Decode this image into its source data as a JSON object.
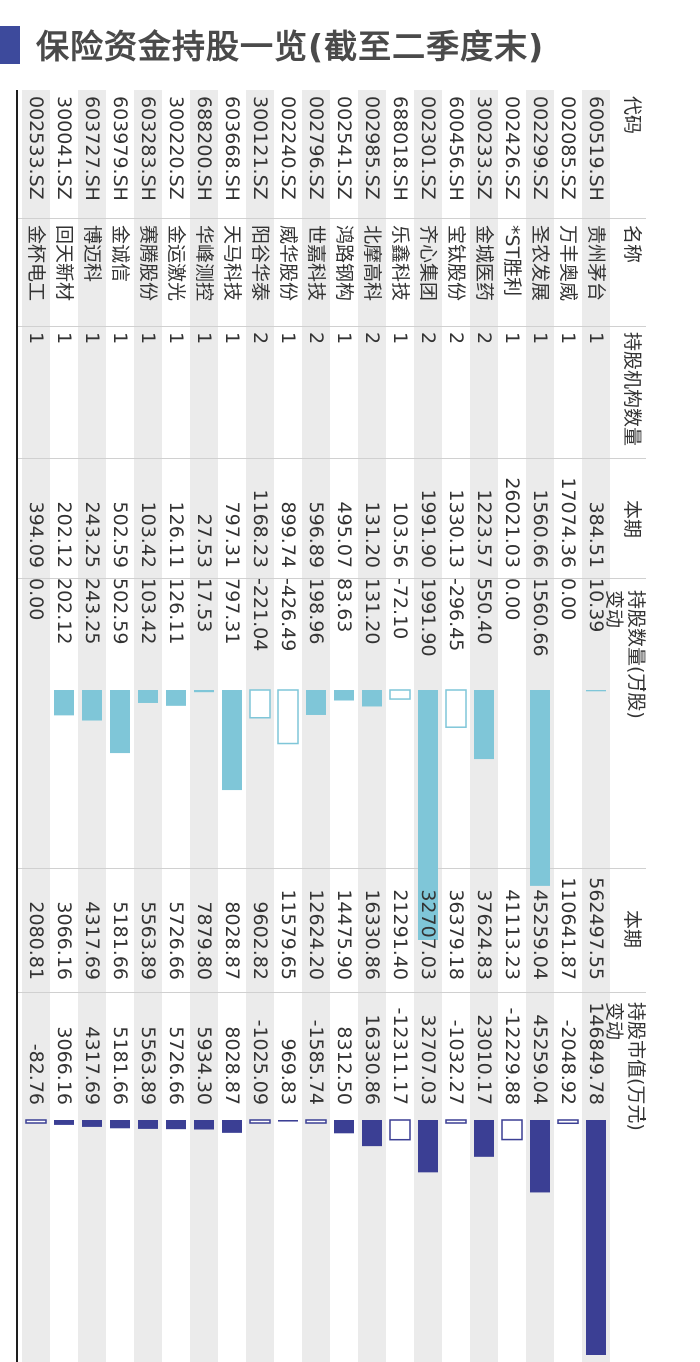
{
  "title": "保险资金持股一览(截至二季度末)",
  "header": {
    "code": "代码",
    "name": "名称",
    "count": "持股机构数量",
    "shares_group": "持股数量(万股)",
    "value_group": "持股市值(万元)",
    "current": "本期",
    "change": "变动"
  },
  "colors": {
    "accent": "#3d4a9c",
    "shares_bar": "#7fc6d8",
    "value_bar": "#3b3f94",
    "band": "#ebebeb",
    "text": "#333333"
  },
  "rows": [
    {
      "code": "600519.SH",
      "name": "贵州茅台",
      "count": "1",
      "shares": "384.51",
      "shares_chg": "10.39",
      "value": "562497.55",
      "value_chg": "146849.78"
    },
    {
      "code": "002085.SZ",
      "name": "万丰奥威",
      "count": "1",
      "shares": "17074.36",
      "shares_chg": "0.00",
      "value": "110641.87",
      "value_chg": "-2048.92"
    },
    {
      "code": "002299.SZ",
      "name": "圣农发展",
      "count": "1",
      "shares": "1560.66",
      "shares_chg": "1560.66",
      "value": "45259.04",
      "value_chg": "45259.04"
    },
    {
      "code": "002426.SZ",
      "name": "*ST胜利",
      "count": "1",
      "shares": "26021.03",
      "shares_chg": "0.00",
      "value": "41113.23",
      "value_chg": "-12229.88"
    },
    {
      "code": "300233.SZ",
      "name": "金城医药",
      "count": "2",
      "shares": "1223.57",
      "shares_chg": "550.40",
      "value": "37624.83",
      "value_chg": "23010.17"
    },
    {
      "code": "600456.SH",
      "name": "宝钛股份",
      "count": "2",
      "shares": "1330.13",
      "shares_chg": "-296.45",
      "value": "36379.18",
      "value_chg": "-1032.27"
    },
    {
      "code": "002301.SZ",
      "name": "齐心集团",
      "count": "2",
      "shares": "1991.90",
      "shares_chg": "1991.90",
      "value": "32707.03",
      "value_chg": "32707.03"
    },
    {
      "code": "688018.SH",
      "name": "乐鑫科技",
      "count": "1",
      "shares": "103.56",
      "shares_chg": "-72.10",
      "value": "21291.40",
      "value_chg": "-12311.17"
    },
    {
      "code": "002985.SZ",
      "name": "北摩高科",
      "count": "2",
      "shares": "131.20",
      "shares_chg": "131.20",
      "value": "16330.86",
      "value_chg": "16330.86"
    },
    {
      "code": "002541.SZ",
      "name": "鸿路钢构",
      "count": "1",
      "shares": "495.07",
      "shares_chg": "83.63",
      "value": "14475.90",
      "value_chg": "8312.50"
    },
    {
      "code": "002796.SZ",
      "name": "世嘉科技",
      "count": "2",
      "shares": "596.89",
      "shares_chg": "198.96",
      "value": "12624.20",
      "value_chg": "-1585.74"
    },
    {
      "code": "002240.SZ",
      "name": "威华股份",
      "count": "1",
      "shares": "899.74",
      "shares_chg": "-426.49",
      "value": "11579.65",
      "value_chg": "969.83"
    },
    {
      "code": "300121.SZ",
      "name": "阳谷华泰",
      "count": "2",
      "shares": "1168.23",
      "shares_chg": "-221.04",
      "value": "9602.82",
      "value_chg": "-1025.09"
    },
    {
      "code": "603668.SH",
      "name": "天马科技",
      "count": "1",
      "shares": "797.31",
      "shares_chg": "797.31",
      "value": "8028.87",
      "value_chg": "8028.87"
    },
    {
      "code": "688200.SH",
      "name": "华峰测控",
      "count": "1",
      "shares": "27.53",
      "shares_chg": "17.53",
      "value": "7879.80",
      "value_chg": "5934.30"
    },
    {
      "code": "300220.SZ",
      "name": "金运激光",
      "count": "1",
      "shares": "126.11",
      "shares_chg": "126.11",
      "value": "5726.66",
      "value_chg": "5726.66"
    },
    {
      "code": "603283.SH",
      "name": "赛腾股份",
      "count": "1",
      "shares": "103.42",
      "shares_chg": "103.42",
      "value": "5563.89",
      "value_chg": "5563.89"
    },
    {
      "code": "603979.SH",
      "name": "金诚信",
      "count": "1",
      "shares": "502.59",
      "shares_chg": "502.59",
      "value": "5181.66",
      "value_chg": "5181.66"
    },
    {
      "code": "603727.SH",
      "name": "博迈科",
      "count": "1",
      "shares": "243.25",
      "shares_chg": "243.25",
      "value": "4317.69",
      "value_chg": "4317.69"
    },
    {
      "code": "300041.SZ",
      "name": "回天新材",
      "count": "1",
      "shares": "202.12",
      "shares_chg": "202.12",
      "value": "3066.16",
      "value_chg": "3066.16"
    },
    {
      "code": "002533.SZ",
      "name": "金杯电工",
      "count": "1",
      "shares": "394.09",
      "shares_chg": "0.00",
      "value": "2080.81",
      "value_chg": "-82.76"
    }
  ],
  "chart_data": [
    {
      "type": "bar",
      "ylabel": "持股数量(万股)",
      "categories": [
        "贵州茅台",
        "万丰奥威",
        "圣农发展",
        "*ST胜利",
        "金城医药",
        "宝钛股份",
        "齐心集团",
        "乐鑫科技",
        "北摩高科",
        "鸿路钢构",
        "世嘉科技",
        "威华股份",
        "阳谷华泰",
        "天马科技",
        "华峰测控",
        "金运激光",
        "赛腾股份",
        "金诚信",
        "博迈科",
        "回天新材",
        "金杯电工"
      ],
      "series": [
        {
          "name": "变动",
          "values": [
            10.39,
            0.0,
            1560.66,
            0.0,
            550.4,
            -296.45,
            1991.9,
            -72.1,
            131.2,
            83.63,
            198.96,
            -426.49,
            -221.04,
            797.31,
            17.53,
            126.11,
            103.42,
            502.59,
            243.25,
            202.12,
            0.0
          ]
        }
      ]
    },
    {
      "type": "bar",
      "ylabel": "持股市值(万元)",
      "categories": [
        "贵州茅台",
        "万丰奥威",
        "圣农发展",
        "*ST胜利",
        "金城医药",
        "宝钛股份",
        "齐心集团",
        "乐鑫科技",
        "北摩高科",
        "鸿路钢构",
        "世嘉科技",
        "威华股份",
        "阳谷华泰",
        "天马科技",
        "华峰测控",
        "金运激光",
        "赛腾股份",
        "金诚信",
        "博迈科",
        "回天新材",
        "金杯电工"
      ],
      "series": [
        {
          "name": "变动",
          "values": [
            146849.78,
            -2048.92,
            45259.04,
            -12229.88,
            23010.17,
            -1032.27,
            32707.03,
            -12311.17,
            16330.86,
            8312.5,
            -1585.74,
            969.83,
            -1025.09,
            8028.87,
            5934.3,
            5726.66,
            5563.89,
            5181.66,
            4317.69,
            3066.16,
            -82.76
          ]
        }
      ]
    }
  ]
}
